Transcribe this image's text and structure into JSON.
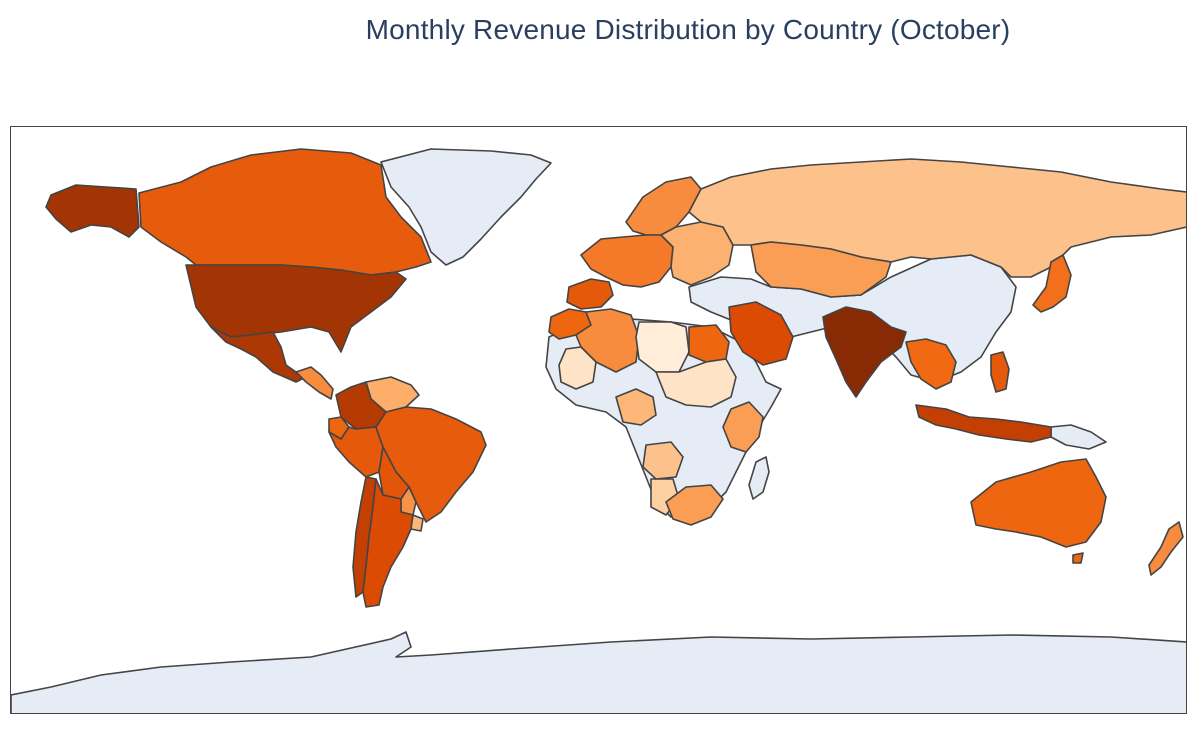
{
  "chart_data": {
    "type": "choropleth",
    "title": "Monthly Revenue Distribution by Country (October)",
    "projection": "equirectangular",
    "colorscale": "oranges",
    "no_data_color": "#e5ecf6",
    "border_color": "#444444",
    "land_no_data": [
      "Greenland",
      "China",
      "Mongolia",
      "Afghanistan",
      "Pakistan",
      "Iran",
      "Turkey",
      "Central & Southern Africa",
      "Papua",
      "Antarctica",
      "Madagascar"
    ],
    "regions": [
      {
        "name": "Alaska (United States)",
        "level": 0.92
      },
      {
        "name": "Canada",
        "level": 0.68
      },
      {
        "name": "United States",
        "level": 0.92
      },
      {
        "name": "Mexico",
        "level": 0.9
      },
      {
        "name": "Central America",
        "level": 0.5
      },
      {
        "name": "Venezuela",
        "level": 0.4
      },
      {
        "name": "Colombia",
        "level": 0.88
      },
      {
        "name": "Ecuador",
        "level": 0.62
      },
      {
        "name": "Peru",
        "level": 0.7
      },
      {
        "name": "Brazil",
        "level": 0.68
      },
      {
        "name": "Bolivia",
        "level": 0.72
      },
      {
        "name": "Paraguay",
        "level": 0.48
      },
      {
        "name": "Argentina",
        "level": 0.78
      },
      {
        "name": "Chile",
        "level": 0.85
      },
      {
        "name": "Uruguay",
        "level": 0.35
      },
      {
        "name": "Western Europe",
        "level": 0.55
      },
      {
        "name": "Iberia",
        "level": 0.7
      },
      {
        "name": "Scandinavia",
        "level": 0.5
      },
      {
        "name": "Eastern Europe",
        "level": 0.38
      },
      {
        "name": "Russia",
        "level": 0.28
      },
      {
        "name": "Kazakhstan",
        "level": 0.45
      },
      {
        "name": "Morocco",
        "level": 0.62
      },
      {
        "name": "Algeria",
        "level": 0.5
      },
      {
        "name": "Libya",
        "level": 0.05
      },
      {
        "name": "Egypt",
        "level": 0.62
      },
      {
        "name": "Mauritania",
        "level": 0.1
      },
      {
        "name": "Saudi Arabia",
        "level": 0.78
      },
      {
        "name": "India",
        "level": 0.98
      },
      {
        "name": "Southeast Asia",
        "level": 0.6
      },
      {
        "name": "Indonesia",
        "level": 0.85
      },
      {
        "name": "Philippines",
        "level": 0.7
      },
      {
        "name": "Japan",
        "level": 0.58
      },
      {
        "name": "Australia",
        "level": 0.62
      },
      {
        "name": "New Zealand",
        "level": 0.5
      },
      {
        "name": "Sudan / Chad",
        "level": 0.1
      },
      {
        "name": "Nigeria",
        "level": 0.35
      },
      {
        "name": "East Africa",
        "level": 0.45
      },
      {
        "name": "Angola",
        "level": 0.28
      },
      {
        "name": "Namibia",
        "level": 0.2
      },
      {
        "name": "South Africa",
        "level": 0.45
      }
    ]
  }
}
